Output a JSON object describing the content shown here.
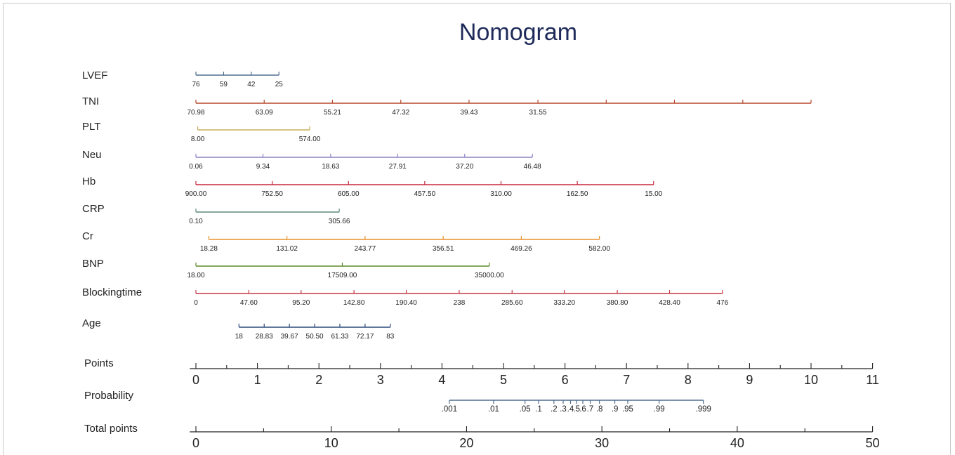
{
  "chart_data": {
    "type": "nomogram",
    "title": "Nomogram",
    "variables": [
      {
        "name": "LVEF",
        "color": "#4f6e8f",
        "ticks": [
          "76",
          "59",
          "42",
          "25"
        ],
        "points": [
          0,
          0.45,
          0.9,
          1.35
        ]
      },
      {
        "name": "TNI",
        "color": "#b5472a",
        "ticks": [
          "70.98",
          "63.09",
          "55.21",
          "47.32",
          "39.43",
          "31.55",
          "",
          "",
          "",
          ""
        ],
        "points": [
          0,
          1.11,
          2.22,
          3.33,
          4.44,
          5.56,
          6.67,
          7.78,
          8.89,
          10
        ]
      },
      {
        "name": "PLT",
        "color": "#c9ad5a",
        "ticks": [
          "8.00",
          "574.00"
        ],
        "points": [
          0.03,
          1.85
        ]
      },
      {
        "name": "Neu",
        "color": "#8e80c4",
        "ticks": [
          "0.06",
          "9.34",
          "18.63",
          "27.91",
          "37.20",
          "46.48"
        ],
        "points": [
          0,
          1.09,
          2.19,
          3.28,
          4.37,
          5.47
        ]
      },
      {
        "name": "Hb",
        "color": "#c8283b",
        "ticks": [
          "900.00",
          "752.50",
          "605.00",
          "457.50",
          "310.00",
          "162.50",
          "15.00"
        ],
        "points": [
          0,
          1.24,
          2.48,
          3.72,
          4.96,
          6.2,
          7.44
        ]
      },
      {
        "name": "CRP",
        "color": "#5e8c78",
        "ticks": [
          "0.10",
          "305.66"
        ],
        "points": [
          0,
          2.33
        ]
      },
      {
        "name": "Cr",
        "color": "#e8902a",
        "ticks": [
          "18.28",
          "131.02",
          "243.77",
          "356.51",
          "469.26",
          "582.00"
        ],
        "points": [
          0.21,
          1.48,
          2.75,
          4.02,
          5.29,
          6.56
        ]
      },
      {
        "name": "BNP",
        "color": "#5c8a2a",
        "ticks": [
          "18.00",
          "17509.00",
          "35000.00"
        ],
        "points": [
          0,
          2.38,
          4.77
        ]
      },
      {
        "name": "Blockingtime",
        "color": "#c23a45",
        "ticks": [
          "0",
          "47.60",
          "95.20",
          "142.80",
          "190.40",
          "238",
          "285.60",
          "333.20",
          "380.80",
          "428.40",
          "476"
        ],
        "points": [
          0,
          0.86,
          1.71,
          2.57,
          3.42,
          4.28,
          5.14,
          5.99,
          6.85,
          7.7,
          8.56
        ]
      },
      {
        "name": "Age",
        "color": "#2a4a7a",
        "ticks": [
          "18",
          "28.83",
          "39.67",
          "50.50",
          "61.33",
          "72.17",
          "83"
        ],
        "points": [
          0.7,
          1.11,
          1.52,
          1.93,
          2.34,
          2.75,
          3.16
        ]
      }
    ],
    "points_axis": {
      "name": "Points",
      "min": 0,
      "max": 11,
      "ticks": [
        "0",
        "1",
        "2",
        "3",
        "4",
        "5",
        "6",
        "7",
        "8",
        "9",
        "10",
        "11"
      ]
    },
    "probability_axis": {
      "name": "Probability",
      "color": "#4f6e8f",
      "ticks": [
        {
          "label": ".001",
          "points": 4.12
        },
        {
          "label": ".01",
          "points": 4.84
        },
        {
          "label": ".05",
          "points": 5.35
        },
        {
          "label": ".1",
          "points": 5.57
        },
        {
          "label": ".2",
          "points": 5.82
        },
        {
          "label": ".3",
          "points": 5.97
        },
        {
          "label": ".4",
          "points": 6.09
        },
        {
          "label": ".5",
          "points": 6.19
        },
        {
          "label": ".6",
          "points": 6.29
        },
        {
          "label": ".7",
          "points": 6.41
        },
        {
          "label": ".8",
          "points": 6.56
        },
        {
          "label": ".9",
          "points": 6.81
        },
        {
          "label": ".95",
          "points": 7.02
        },
        {
          "label": ".99",
          "points": 7.53
        },
        {
          "label": ".999",
          "points": 8.25
        }
      ]
    },
    "total_points_axis": {
      "name": "Total points",
      "min": 0,
      "max": 50,
      "ticks": [
        "0",
        "10",
        "20",
        "30",
        "40",
        "50"
      ],
      "minor_step": 5
    }
  }
}
